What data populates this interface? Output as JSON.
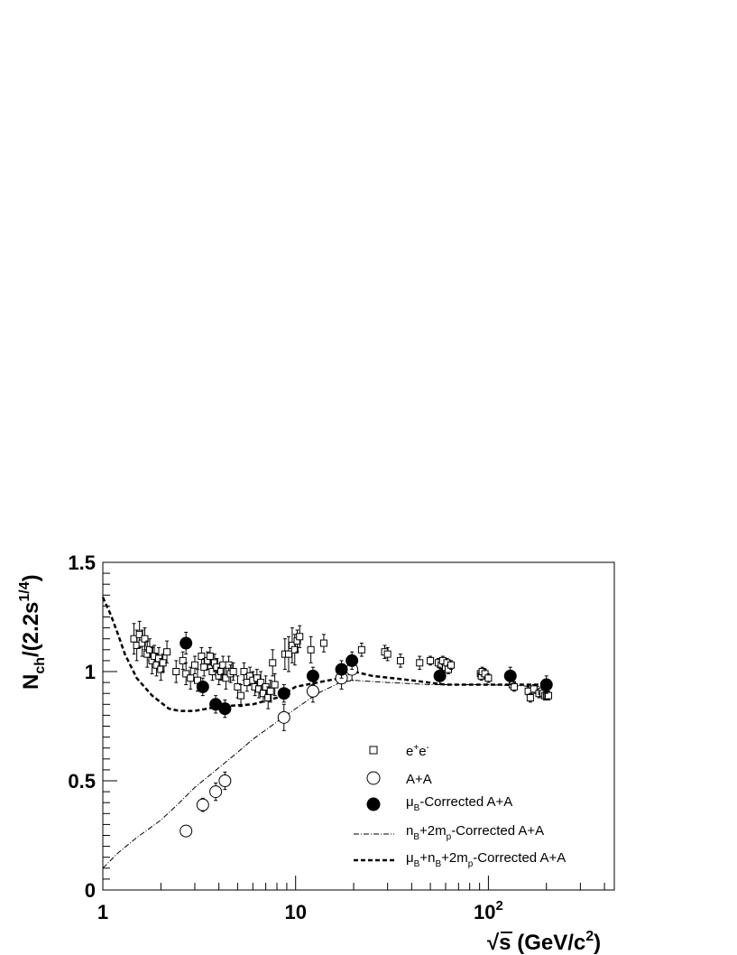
{
  "chart_data": {
    "type": "scatter",
    "title": "",
    "xscale": "log",
    "xlim": [
      1,
      450
    ],
    "ylim": [
      0,
      1.5
    ],
    "grid": false,
    "legend_position": "center-right",
    "ylabel": {
      "main": "N",
      "sub": "ch",
      "mid": "/(2.2s",
      "sup": "1/4",
      "end": ")"
    },
    "xlabel": {
      "root": "√",
      "s": "s",
      "mid": " (GeV/c",
      "sup": "2",
      "end": ")"
    },
    "x_ticks": [
      {
        "value": 1,
        "base": "1",
        "exp": ""
      },
      {
        "value": 10,
        "base": "10",
        "exp": ""
      },
      {
        "value": 100,
        "base": "10",
        "exp": "2"
      }
    ],
    "y_ticks": [
      {
        "value": 0,
        "label": "0"
      },
      {
        "value": 0.5,
        "label": "0.5"
      },
      {
        "value": 1,
        "label": "1"
      },
      {
        "value": 1.5,
        "label": "1.5"
      }
    ],
    "series": [
      {
        "name": "e+e-",
        "legend": {
          "base": "e",
          "sup1": "+",
          "mid": "e",
          "sup2": "-"
        },
        "marker": "open-square",
        "points": [
          [
            1.45,
            1.15,
            0.07
          ],
          [
            1.5,
            1.12,
            0.07
          ],
          [
            1.55,
            1.17,
            0.06
          ],
          [
            1.6,
            1.13,
            0.06
          ],
          [
            1.65,
            1.15,
            0.05
          ],
          [
            1.7,
            1.08,
            0.06
          ],
          [
            1.75,
            1.1,
            0.05
          ],
          [
            1.8,
            1.05,
            0.06
          ],
          [
            1.85,
            1.07,
            0.05
          ],
          [
            1.9,
            1.03,
            0.05
          ],
          [
            1.95,
            1.06,
            0.05
          ],
          [
            2.0,
            1.01,
            0.05
          ],
          [
            2.05,
            1.04,
            0.04
          ],
          [
            2.15,
            1.09,
            0.05
          ],
          [
            2.4,
            1.0,
            0.05
          ],
          [
            2.6,
            1.05,
            0.04
          ],
          [
            2.7,
            0.99,
            0.05
          ],
          [
            2.85,
            0.97,
            0.05
          ],
          [
            3.0,
            1.03,
            0.04
          ],
          [
            3.1,
            0.96,
            0.05
          ],
          [
            3.25,
            1.07,
            0.04
          ],
          [
            3.35,
            1.02,
            0.04
          ],
          [
            3.5,
            1.05,
            0.04
          ],
          [
            3.6,
            1.07,
            0.04
          ],
          [
            3.7,
            1.0,
            0.04
          ],
          [
            3.8,
            1.04,
            0.04
          ],
          [
            3.9,
            1.02,
            0.04
          ],
          [
            4.0,
            0.98,
            0.04
          ],
          [
            4.1,
            1.0,
            0.04
          ],
          [
            4.2,
            1.03,
            0.04
          ],
          [
            4.35,
            0.97,
            0.05
          ],
          [
            4.5,
            1.03,
            0.04
          ],
          [
            4.6,
            0.99,
            0.04
          ],
          [
            4.75,
            1.0,
            0.04
          ],
          [
            5.0,
            0.93,
            0.05
          ],
          [
            5.2,
            0.89,
            0.05
          ],
          [
            5.4,
            1.0,
            0.04
          ],
          [
            5.6,
            0.95,
            0.04
          ],
          [
            5.8,
            0.98,
            0.04
          ],
          [
            6.0,
            0.96,
            0.04
          ],
          [
            6.15,
            0.93,
            0.04
          ],
          [
            6.3,
            0.97,
            0.04
          ],
          [
            6.45,
            0.92,
            0.04
          ],
          [
            6.6,
            0.95,
            0.05
          ],
          [
            6.8,
            0.9,
            0.04
          ],
          [
            7.0,
            0.93,
            0.05
          ],
          [
            7.2,
            0.88,
            0.05
          ],
          [
            7.4,
            0.91,
            0.05
          ],
          [
            7.6,
            1.04,
            0.06
          ],
          [
            7.8,
            0.94,
            0.05
          ],
          [
            8.8,
            1.08,
            0.07
          ],
          [
            9.2,
            1.08,
            0.08
          ],
          [
            9.6,
            1.12,
            0.08
          ],
          [
            9.9,
            1.1,
            0.07
          ],
          [
            10.2,
            1.14,
            0.05
          ],
          [
            10.5,
            1.16,
            0.05
          ],
          [
            12.0,
            1.1,
            0.06
          ],
          [
            14.0,
            1.13,
            0.04
          ],
          [
            22.0,
            1.1,
            0.03
          ],
          [
            29.0,
            1.09,
            0.03
          ],
          [
            30.0,
            1.08,
            0.03
          ],
          [
            35.0,
            1.05,
            0.03
          ],
          [
            44.0,
            1.04,
            0.03
          ],
          [
            50.0,
            1.05,
            0.02
          ],
          [
            55.0,
            1.04,
            0.02
          ],
          [
            57.0,
            1.03,
            0.02
          ],
          [
            58.0,
            1.05,
            0.02
          ],
          [
            60.0,
            1.02,
            0.02
          ],
          [
            61.0,
            1.04,
            0.02
          ],
          [
            62.0,
            1.01,
            0.02
          ],
          [
            64.0,
            1.03,
            0.02
          ],
          [
            91.0,
            0.99,
            0.02
          ],
          [
            92.0,
            0.98,
            0.02
          ],
          [
            93.0,
            1.0,
            0.02
          ],
          [
            96.0,
            0.99,
            0.02
          ],
          [
            100.0,
            0.97,
            0.02
          ],
          [
            133.0,
            0.94,
            0.02
          ],
          [
            136.0,
            0.93,
            0.02
          ],
          [
            161.0,
            0.91,
            0.02
          ],
          [
            165.0,
            0.88,
            0.02
          ],
          [
            172.0,
            0.92,
            0.02
          ],
          [
            183.0,
            0.9,
            0.02
          ],
          [
            189.0,
            0.91,
            0.02
          ],
          [
            192.0,
            0.9,
            0.02
          ],
          [
            196.0,
            0.89,
            0.02
          ],
          [
            200.0,
            0.89,
            0.02
          ],
          [
            202.0,
            0.89,
            0.02
          ],
          [
            205.0,
            0.89,
            0.02
          ]
        ]
      },
      {
        "name": "A+A",
        "legend": {
          "base": "A+A"
        },
        "marker": "open-circle",
        "points": [
          [
            2.7,
            0.27,
            0.015
          ],
          [
            3.3,
            0.39,
            0.03
          ],
          [
            3.85,
            0.45,
            0.04
          ],
          [
            4.3,
            0.5,
            0.04
          ],
          [
            8.7,
            0.79,
            0.06
          ],
          [
            12.3,
            0.91,
            0.05
          ],
          [
            17.3,
            0.97,
            0.05
          ],
          [
            19.6,
            1.01,
            0.05
          ]
        ]
      },
      {
        "name": "μB-Corrected A+A",
        "legend": {
          "base": "μ",
          "sub": "B",
          "rest": "-Corrected A+A"
        },
        "marker": "filled-circle",
        "points": [
          [
            2.7,
            1.13,
            0.05
          ],
          [
            3.3,
            0.93,
            0.04
          ],
          [
            3.85,
            0.85,
            0.04
          ],
          [
            4.3,
            0.83,
            0.04
          ],
          [
            8.7,
            0.9,
            0.04
          ],
          [
            12.3,
            0.98,
            0.04
          ],
          [
            17.3,
            1.01,
            0.04
          ],
          [
            19.6,
            1.05,
            0.04
          ],
          [
            56.0,
            0.98,
            0.04
          ],
          [
            130.0,
            0.98,
            0.04
          ],
          [
            200.0,
            0.94,
            0.04
          ]
        ]
      }
    ],
    "curves": [
      {
        "name": "nB+2mp-Corrected A+A",
        "legend": {
          "base": "n",
          "sub1": "B",
          "mid": "+2m",
          "sub2": "p",
          "rest": "-Corrected A+A"
        },
        "style": "dash-dot",
        "points": [
          [
            1.0,
            0.1
          ],
          [
            1.2,
            0.17
          ],
          [
            1.5,
            0.24
          ],
          [
            2.0,
            0.32
          ],
          [
            2.5,
            0.4
          ],
          [
            3.0,
            0.47
          ],
          [
            4.0,
            0.56
          ],
          [
            5.0,
            0.63
          ],
          [
            6.0,
            0.69
          ],
          [
            8.0,
            0.77
          ],
          [
            10.0,
            0.83
          ],
          [
            13.0,
            0.9
          ],
          [
            17.0,
            0.95
          ],
          [
            20.0,
            0.96
          ],
          [
            30.0,
            0.95
          ],
          [
            50.0,
            0.94
          ],
          [
            100.0,
            0.94
          ],
          [
            200.0,
            0.93
          ]
        ]
      },
      {
        "name": "μB+nB+2mp-Corrected A+A",
        "legend": {
          "base": "μ",
          "sub1": "B",
          "mid1": "+n",
          "sub2": "B",
          "mid2": "+2m",
          "sub3": "p",
          "rest": "-Corrected A+A"
        },
        "style": "dashed",
        "points": [
          [
            1.0,
            1.34
          ],
          [
            1.1,
            1.26
          ],
          [
            1.2,
            1.17
          ],
          [
            1.3,
            1.08
          ],
          [
            1.5,
            0.97
          ],
          [
            1.8,
            0.89
          ],
          [
            2.2,
            0.83
          ],
          [
            2.5,
            0.82
          ],
          [
            3.0,
            0.82
          ],
          [
            4.0,
            0.84
          ],
          [
            6.0,
            0.85
          ],
          [
            8.0,
            0.88
          ],
          [
            10.0,
            0.93
          ],
          [
            13.0,
            0.95
          ],
          [
            17.0,
            0.97
          ],
          [
            20.0,
            1.0
          ],
          [
            25.0,
            0.98
          ],
          [
            40.0,
            0.96
          ],
          [
            60.0,
            0.94
          ],
          [
            100.0,
            0.94
          ],
          [
            200.0,
            0.94
          ]
        ]
      }
    ]
  }
}
